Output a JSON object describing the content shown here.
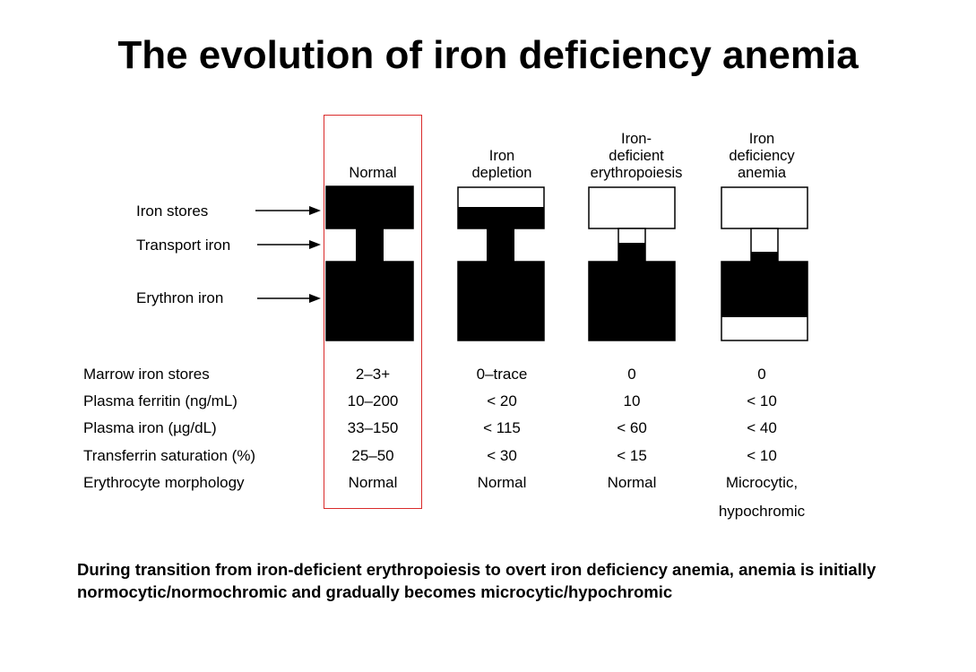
{
  "title": "The evolution of iron deficiency anemia",
  "stages": [
    {
      "label": "Normal"
    },
    {
      "label": "Iron\ndepletion"
    },
    {
      "label": "Iron-\ndeficient\nerythropoiesis"
    },
    {
      "label": "Iron\ndeficiency\nanemia"
    }
  ],
  "compartments": {
    "stores": "Iron stores",
    "transport": "Transport iron",
    "erythron": "Erythron iron"
  },
  "parameters": {
    "labels": [
      "Marrow iron stores",
      "Plasma ferritin (ng/mL)",
      "Plasma iron (µg/dL)",
      "Transferrin saturation (%)",
      "Erythrocyte morphology"
    ],
    "values": [
      [
        "2–3+",
        "0–trace",
        "0",
        "0"
      ],
      [
        "10–200",
        "< 20",
        "10",
        "< 10"
      ],
      [
        "33–150",
        "< 115",
        "< 60",
        "< 40"
      ],
      [
        "25–50",
        "< 30",
        "< 15",
        "< 10"
      ],
      [
        "Normal",
        "Normal",
        "Normal",
        "Microcytic,"
      ]
    ],
    "extra_line": "hypochromic"
  },
  "caption": "During transition from iron-deficient erythropoiesis to overt iron deficiency anemia, anemia is initially normocytic/normochromic and gradually becomes microcytic/hypochromic",
  "colors": {
    "fill": "#000000",
    "highlight": "#d92b2b"
  }
}
